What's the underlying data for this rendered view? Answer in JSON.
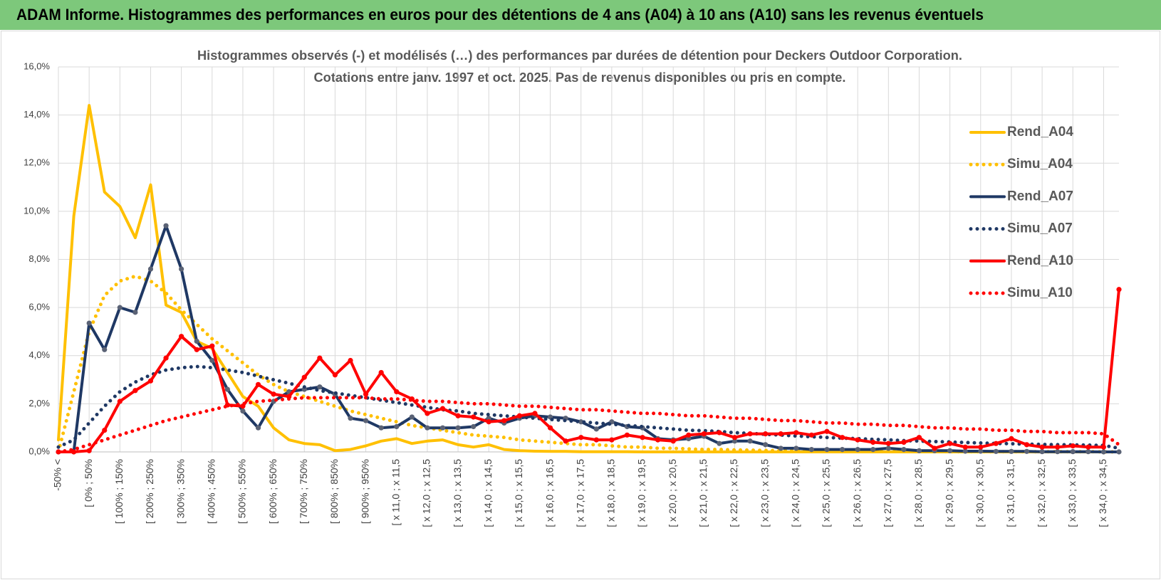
{
  "header": {
    "title": "ADAM Informe. Histogrammes des performances en euros pour des détentions de 4 ans (A04) à 10 ans (A10) sans les revenus éventuels"
  },
  "chart_data": {
    "type": "line",
    "title": "Histogrammes observés (-) et modélisés (…) des performances par durées de détention pour Deckers Outdoor Corporation.",
    "subtitle": "Cotations entre janv. 1997 et oct. 2025. Pas de revenus disponibles ou pris en compte.",
    "categories": [
      "-50% <",
      null,
      "[ 0% ; 50%",
      null,
      "[ 100% ; 150%",
      null,
      "[ 200% ; 250%",
      null,
      "[ 300% ; 350%",
      null,
      "[ 400% ; 450%",
      null,
      "[ 500% ; 550%",
      null,
      "[ 600% ; 650%",
      null,
      "[ 700% ; 750%",
      null,
      "[ 800% ; 850%",
      null,
      "[ 900% ; 950%",
      null,
      "[ x 11,0 ; x 11,5",
      null,
      "[ x 12,0 ; x 12,5",
      null,
      "[ x 13,0 ; x 13,5",
      null,
      "[ x 14,0 ; x 14,5",
      null,
      "[ x 15,0 ; x 15,5",
      null,
      "[ x 16,0 ; x 16,5",
      null,
      "[ x 17,0 ; x 17,5",
      null,
      "[ x 18,0 ; x 18,5",
      null,
      "[ x 19,0 ; x 19,5",
      null,
      "[ x 20,0 ; x 20,5",
      null,
      "[ x 21,0 ; x 21,5",
      null,
      "[ x 22,0 ; x 22,5",
      null,
      "[ x 23,0 ; x 23,5",
      null,
      "[ x 24,0 ; x 24,5",
      null,
      "[ x 25,0 ; x 25,5",
      null,
      "[ x 26,0 ; x 26,5",
      null,
      "[ x 27,0 ; x 27,5",
      null,
      "[ x 28,0 ; x 28,5",
      null,
      "[ x 29,0 ; x 29,5",
      null,
      "[ x 30,0 ; x 30,5",
      null,
      "[ x 31,0 ; x 31,5",
      null,
      "[ x 32,0 ; x 32,5",
      null,
      "[ x 33,0 ; x 33,5",
      null,
      "[ x 34,0 ; x 34,5",
      null
    ],
    "series": [
      {
        "name": "Rend_A04",
        "color": "#ffc000",
        "style": "solid",
        "markers": false,
        "values": [
          0.5,
          9.8,
          14.4,
          10.8,
          10.2,
          8.9,
          11.1,
          6.1,
          5.8,
          4.6,
          4.3,
          3.3,
          2.3,
          1.9,
          1.0,
          0.5,
          0.35,
          0.3,
          0.05,
          0.1,
          0.25,
          0.45,
          0.55,
          0.35,
          0.45,
          0.5,
          0.3,
          0.2,
          0.3,
          0.1,
          0.05,
          0.03,
          0.02,
          0.02,
          0.01,
          0.01,
          0.01,
          0.01,
          0,
          0,
          0,
          0,
          0,
          0,
          0,
          0,
          0,
          0,
          0,
          0,
          0,
          0,
          0,
          0,
          0,
          0,
          0,
          0,
          0,
          0,
          0,
          0,
          0,
          0,
          0,
          0,
          0,
          0,
          0,
          0
        ]
      },
      {
        "name": "Simu_A04",
        "color": "#ffc000",
        "style": "dotted",
        "markers": false,
        "values": [
          0,
          2.5,
          5.0,
          6.5,
          7.1,
          7.3,
          7.1,
          6.6,
          5.9,
          5.3,
          4.7,
          4.2,
          3.7,
          3.2,
          2.8,
          2.5,
          2.3,
          2.1,
          1.9,
          1.7,
          1.55,
          1.4,
          1.25,
          1.1,
          1.0,
          0.9,
          0.8,
          0.7,
          0.65,
          0.6,
          0.5,
          0.45,
          0.4,
          0.35,
          0.3,
          0.3,
          0.25,
          0.2,
          0.2,
          0.15,
          0.15,
          0.12,
          0.1,
          0.1,
          0.08,
          0.07,
          0.06,
          0.05,
          0.05,
          0.04,
          0.04,
          0.03,
          0.03,
          0.03,
          0.02,
          0.02,
          0.02,
          0.02,
          0.01,
          0.01,
          0.01,
          0.01,
          0.01,
          0.01,
          0.01,
          0.01,
          0.01,
          0.01,
          0,
          0
        ]
      },
      {
        "name": "Rend_A07",
        "color": "#1f3864",
        "marker_color": "#5a6275",
        "style": "solid",
        "markers": true,
        "values": [
          0,
          0,
          5.35,
          4.25,
          6.0,
          5.8,
          7.6,
          9.4,
          7.6,
          4.6,
          3.8,
          2.6,
          1.7,
          1.0,
          2.1,
          2.5,
          2.6,
          2.7,
          2.4,
          1.4,
          1.3,
          1.0,
          1.05,
          1.45,
          1.0,
          1.0,
          1.0,
          1.05,
          1.4,
          1.2,
          1.4,
          1.5,
          1.45,
          1.4,
          1.25,
          0.95,
          1.25,
          1.05,
          1.0,
          0.55,
          0.5,
          0.55,
          0.65,
          0.35,
          0.45,
          0.45,
          0.3,
          0.15,
          0.15,
          0.1,
          0.1,
          0.1,
          0.1,
          0.1,
          0.15,
          0.1,
          0.05,
          0.05,
          0.05,
          0.03,
          0.03,
          0.02,
          0.02,
          0.02,
          0.01,
          0.01,
          0.01,
          0.01,
          0,
          0
        ]
      },
      {
        "name": "Simu_A07",
        "color": "#1f3864",
        "style": "dotted",
        "markers": false,
        "values": [
          0.2,
          0.5,
          1.2,
          1.9,
          2.5,
          2.9,
          3.2,
          3.4,
          3.5,
          3.55,
          3.5,
          3.4,
          3.3,
          3.15,
          3.0,
          2.85,
          2.7,
          2.55,
          2.45,
          2.35,
          2.25,
          2.15,
          2.05,
          1.95,
          1.85,
          1.75,
          1.7,
          1.6,
          1.55,
          1.5,
          1.45,
          1.4,
          1.35,
          1.3,
          1.25,
          1.2,
          1.15,
          1.1,
          1.05,
          1.0,
          0.95,
          0.9,
          0.88,
          0.85,
          0.8,
          0.77,
          0.73,
          0.7,
          0.66,
          0.63,
          0.6,
          0.57,
          0.55,
          0.52,
          0.5,
          0.47,
          0.45,
          0.43,
          0.41,
          0.39,
          0.37,
          0.35,
          0.34,
          0.32,
          0.31,
          0.3,
          0.29,
          0.28,
          0.27,
          0.15
        ]
      },
      {
        "name": "Rend_A10",
        "color": "#ff0000",
        "marker_color": "#ff0000",
        "style": "solid",
        "markers": true,
        "values": [
          0,
          0,
          0.05,
          0.9,
          2.1,
          2.55,
          2.95,
          3.9,
          4.8,
          4.25,
          4.4,
          1.95,
          1.9,
          2.8,
          2.4,
          2.3,
          3.1,
          3.9,
          3.2,
          3.8,
          2.4,
          3.3,
          2.5,
          2.2,
          1.6,
          1.8,
          1.5,
          1.45,
          1.25,
          1.3,
          1.5,
          1.6,
          1.0,
          0.45,
          0.6,
          0.5,
          0.5,
          0.7,
          0.6,
          0.5,
          0.45,
          0.7,
          0.75,
          0.8,
          0.6,
          0.75,
          0.75,
          0.75,
          0.8,
          0.7,
          0.85,
          0.6,
          0.5,
          0.4,
          0.35,
          0.4,
          0.6,
          0.15,
          0.35,
          0.2,
          0.2,
          0.35,
          0.55,
          0.3,
          0.2,
          0.2,
          0.25,
          0.2,
          0.2,
          6.75
        ]
      },
      {
        "name": "Simu_A10",
        "color": "#ff0000",
        "style": "dotted",
        "markers": false,
        "values": [
          0,
          0.1,
          0.3,
          0.5,
          0.7,
          0.9,
          1.1,
          1.3,
          1.45,
          1.6,
          1.75,
          1.9,
          2.0,
          2.1,
          2.15,
          2.2,
          2.25,
          2.25,
          2.25,
          2.25,
          2.25,
          2.2,
          2.2,
          2.15,
          2.1,
          2.1,
          2.05,
          2.0,
          2.0,
          1.95,
          1.9,
          1.9,
          1.85,
          1.8,
          1.75,
          1.75,
          1.7,
          1.65,
          1.6,
          1.6,
          1.55,
          1.5,
          1.5,
          1.45,
          1.4,
          1.4,
          1.35,
          1.3,
          1.3,
          1.25,
          1.2,
          1.2,
          1.15,
          1.15,
          1.1,
          1.1,
          1.05,
          1.0,
          1.0,
          0.95,
          0.95,
          0.9,
          0.9,
          0.85,
          0.85,
          0.8,
          0.8,
          0.8,
          0.75,
          0.3
        ]
      }
    ],
    "ylim": [
      0,
      16
    ],
    "yticks": [
      {
        "value": 0,
        "label": "0,0%"
      },
      {
        "value": 2,
        "label": "2,0%"
      },
      {
        "value": 4,
        "label": "4,0%"
      },
      {
        "value": 6,
        "label": "6,0%"
      },
      {
        "value": 8,
        "label": "8,0%"
      },
      {
        "value": 10,
        "label": "10,0%"
      },
      {
        "value": 12,
        "label": "12,0%"
      },
      {
        "value": 14,
        "label": "14,0%"
      },
      {
        "value": 16,
        "label": "16,0%"
      }
    ],
    "grid": true
  }
}
